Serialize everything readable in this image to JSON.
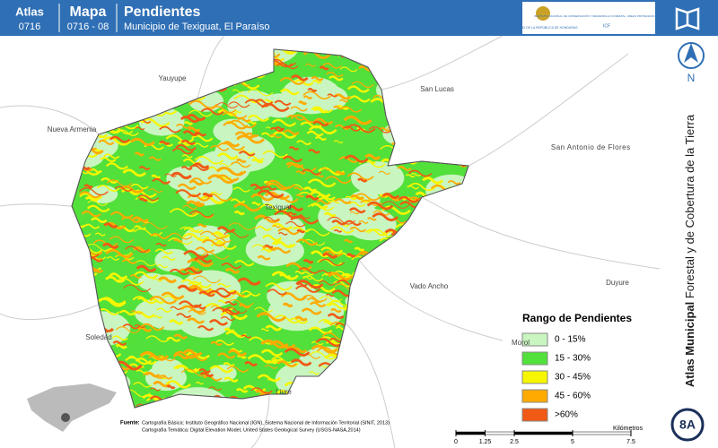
{
  "header": {
    "atlas_label": "Atlas",
    "atlas_code": "0716",
    "map_label": "Mapa",
    "map_code": "0716 - 08",
    "title": "Pendientes",
    "subtitle": "Municipio de Texiguat, El Paraíso"
  },
  "logos": {
    "government": "GOBIERNO DE LA REPÚBLICA DE HONDURAS",
    "institute": "INSTITUTO NACIONAL DE CONSERVACIÓN Y DESARROLLO FORESTAL, ÁREAS PROTEGIDAS Y VIDA SILVESTRE",
    "acronym": "ICF"
  },
  "places": [
    {
      "label": "Yauyupe"
    },
    {
      "label": "San Lucas"
    },
    {
      "label": "Nueva Armenia"
    },
    {
      "label": "San Antonio de Flores"
    },
    {
      "label": "Texiguat"
    },
    {
      "label": "Vado Ancho"
    },
    {
      "label": "Duyure"
    },
    {
      "label": "Soledad"
    },
    {
      "label": "Morol"
    },
    {
      "label": "Liure"
    }
  ],
  "legend": {
    "title": "Rango de Pendientes",
    "items": [
      {
        "label": "0 - 15%",
        "color": "#c8f5c0"
      },
      {
        "label": "15 - 30%",
        "color": "#52e03a"
      },
      {
        "label": "30 - 45%",
        "color": "#f6f600"
      },
      {
        "label": "45 - 60%",
        "color": "#ffaa00"
      },
      {
        "label": ">60%",
        "color": "#f05a14"
      }
    ]
  },
  "scale": {
    "ticks": [
      0,
      1.25,
      2.5,
      5,
      7.5
    ],
    "unit": "Kilómetros"
  },
  "source": {
    "label": "Fuente:",
    "lines": [
      "Cartografía Básica: Instituto Geográfico Nacional (IGN), Sistema Nacional de Información Territorial (SINIT, 2013)",
      "Cartografía Temática: Digital Elevation Model, United States Geological Survey (USGS-NASA,2014)"
    ]
  },
  "sidebar": {
    "title_bold": "Atlas Municipal",
    "title_rest": "Forestal y de Cobertura de la Tierra",
    "north": "N",
    "sheet": "8A"
  }
}
